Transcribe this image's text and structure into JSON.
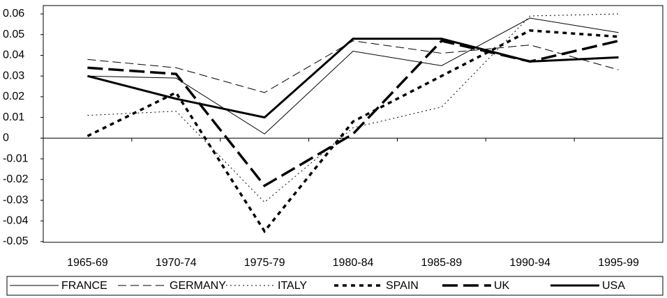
{
  "chart_data": {
    "type": "line",
    "categories": [
      "1965-69",
      "1970-74",
      "1975-79",
      "1980-84",
      "1985-89",
      "1990-94",
      "1995-99"
    ],
    "series": [
      {
        "name": "FRANCE",
        "color": "#000000",
        "values": [
          0.03,
          0.029,
          0.002,
          0.042,
          0.035,
          0.058,
          0.051
        ]
      },
      {
        "name": "GERMANY",
        "color": "#000000",
        "values": [
          0.038,
          0.034,
          0.022,
          0.047,
          0.041,
          0.045,
          0.033
        ]
      },
      {
        "name": "ITALY",
        "color": "#000000",
        "values": [
          0.011,
          0.013,
          -0.031,
          0.005,
          0.015,
          0.059,
          0.06
        ]
      },
      {
        "name": "SPAIN",
        "color": "#000000",
        "values": [
          0.001,
          0.022,
          -0.045,
          0.008,
          0.03,
          0.052,
          0.049
        ]
      },
      {
        "name": "UK",
        "color": "#000000",
        "values": [
          0.034,
          0.031,
          -0.023,
          0.002,
          0.047,
          0.037,
          0.047
        ]
      },
      {
        "name": "USA",
        "color": "#000000",
        "values": [
          0.03,
          0.019,
          0.01,
          0.048,
          0.048,
          0.037,
          0.039
        ]
      }
    ],
    "ylim": [
      -0.05,
      0.06
    ],
    "yticks": [
      -0.05,
      -0.04,
      -0.03,
      -0.02,
      -0.01,
      0,
      0.01,
      0.02,
      0.03,
      0.04,
      0.05,
      0.06
    ],
    "grid": false,
    "legend": "bottom"
  }
}
